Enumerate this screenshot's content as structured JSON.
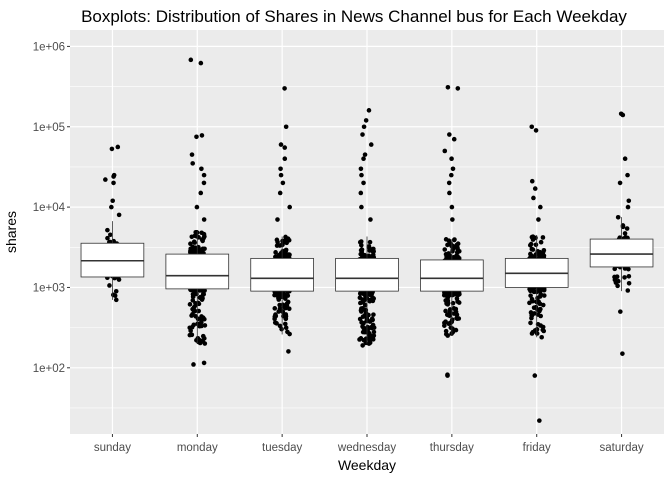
{
  "chart_data": {
    "type": "boxplot",
    "title": "Boxplots: Distribution of Shares in News Channel bus for Each Weekday",
    "xlabel": "Weekday",
    "ylabel": "shares",
    "y_scale": "log10",
    "ylim": [
      15,
      1600000
    ],
    "grid": true,
    "legend": "none",
    "y_ticks": [
      {
        "value": 100,
        "label": "1e+02"
      },
      {
        "value": 1000,
        "label": "1e+03"
      },
      {
        "value": 10000,
        "label": "1e+04"
      },
      {
        "value": 100000,
        "label": "1e+05"
      },
      {
        "value": 1000000,
        "label": "1e+06"
      }
    ],
    "categories": [
      "sunday",
      "monday",
      "tuesday",
      "wednesday",
      "thursday",
      "friday",
      "saturday"
    ],
    "boxes": [
      {
        "category": "sunday",
        "q1": 1350,
        "median": 2150,
        "q3": 3550,
        "whisker_low": 700,
        "whisker_high": 6700,
        "n_points": 340,
        "outliers": [
          8000,
          10000,
          12000,
          20000,
          22000,
          24000,
          25000,
          53000,
          56000
        ]
      },
      {
        "category": "monday",
        "q1": 960,
        "median": 1400,
        "q3": 2600,
        "whisker_low": 200,
        "whisker_high": 5000,
        "n_points": 1150,
        "outliers": [
          110,
          115,
          220,
          7000,
          10000,
          15000,
          20000,
          25000,
          30000,
          35000,
          45000,
          75000,
          78000,
          620000,
          680000
        ]
      },
      {
        "category": "tuesday",
        "q1": 900,
        "median": 1300,
        "q3": 2300,
        "whisker_low": 260,
        "whisker_high": 4300,
        "n_points": 1150,
        "outliers": [
          160,
          7000,
          10000,
          15000,
          20000,
          25000,
          30000,
          40000,
          55000,
          60000,
          100000,
          300000
        ]
      },
      {
        "category": "wednesday",
        "q1": 900,
        "median": 1300,
        "q3": 2300,
        "whisker_low": 200,
        "whisker_high": 4300,
        "n_points": 1150,
        "outliers": [
          190,
          200,
          7000,
          10000,
          15000,
          20000,
          25000,
          30000,
          40000,
          45000,
          60000,
          80000,
          100000,
          120000,
          160000
        ]
      },
      {
        "category": "thursday",
        "q1": 900,
        "median": 1300,
        "q3": 2200,
        "whisker_low": 250,
        "whisker_high": 4000,
        "n_points": 1150,
        "outliers": [
          80,
          82,
          7000,
          10000,
          15000,
          20000,
          25000,
          30000,
          40000,
          50000,
          70000,
          80000,
          300000,
          310000
        ]
      },
      {
        "category": "friday",
        "q1": 1000,
        "median": 1500,
        "q3": 2300,
        "whisker_low": 240,
        "whisker_high": 4500,
        "n_points": 850,
        "outliers": [
          22,
          80,
          240,
          7000,
          10000,
          13000,
          17000,
          21000,
          90000,
          100000
        ]
      },
      {
        "category": "saturday",
        "q1": 1800,
        "median": 2600,
        "q3": 4000,
        "whisker_low": 900,
        "whisker_high": 7500,
        "n_points": 330,
        "outliers": [
          150,
          500,
          10000,
          12000,
          20000,
          25000,
          40000,
          140000,
          145000
        ]
      }
    ]
  }
}
